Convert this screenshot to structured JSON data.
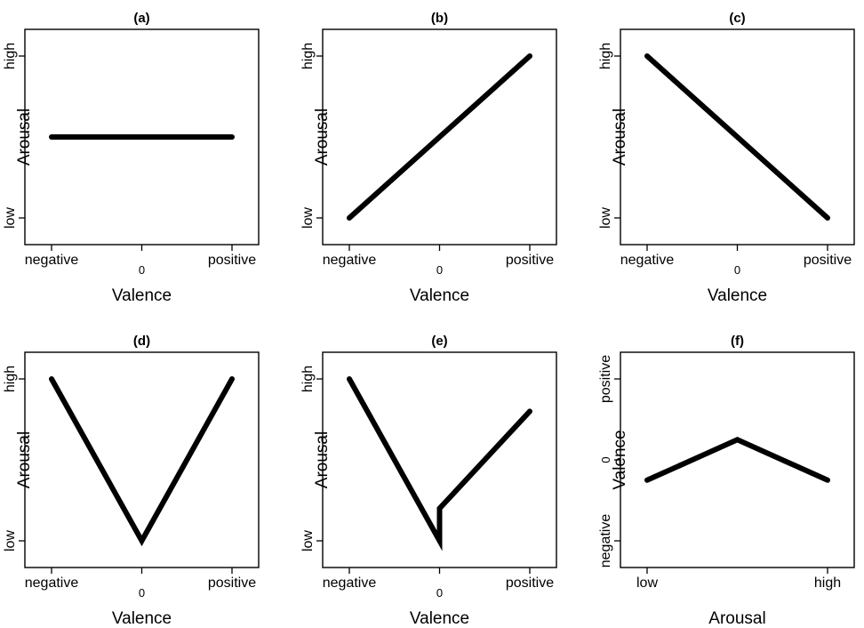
{
  "chart_data": [
    {
      "type": "line",
      "title": "(a)",
      "xlabel": "Valence",
      "ylabel": "Arousal",
      "x_ticks": [
        "negative",
        "0",
        "positive"
      ],
      "y_ticks": [
        "low",
        "high"
      ],
      "xlim": [
        -1,
        1
      ],
      "ylim": [
        0,
        1
      ],
      "series": [
        {
          "x": [
            -1,
            1
          ],
          "y": [
            0.5,
            0.5
          ]
        }
      ]
    },
    {
      "type": "line",
      "title": "(b)",
      "xlabel": "Valence",
      "ylabel": "Arousal",
      "x_ticks": [
        "negative",
        "0",
        "positive"
      ],
      "y_ticks": [
        "low",
        "high"
      ],
      "xlim": [
        -1,
        1
      ],
      "ylim": [
        0,
        1
      ],
      "series": [
        {
          "x": [
            -1,
            1
          ],
          "y": [
            0.0,
            1.0
          ]
        }
      ]
    },
    {
      "type": "line",
      "title": "(c)",
      "xlabel": "Valence",
      "ylabel": "Arousal",
      "x_ticks": [
        "negative",
        "0",
        "positive"
      ],
      "y_ticks": [
        "low",
        "high"
      ],
      "xlim": [
        -1,
        1
      ],
      "ylim": [
        0,
        1
      ],
      "series": [
        {
          "x": [
            -1,
            1
          ],
          "y": [
            1.0,
            0.0
          ]
        }
      ]
    },
    {
      "type": "line",
      "title": "(d)",
      "xlabel": "Valence",
      "ylabel": "Arousal",
      "x_ticks": [
        "negative",
        "0",
        "positive"
      ],
      "y_ticks": [
        "low",
        "high"
      ],
      "xlim": [
        -1,
        1
      ],
      "ylim": [
        0,
        1
      ],
      "series": [
        {
          "x": [
            -1,
            0,
            1
          ],
          "y": [
            1.0,
            0.0,
            1.0
          ]
        }
      ]
    },
    {
      "type": "line",
      "title": "(e)",
      "xlabel": "Valence",
      "ylabel": "Arousal",
      "x_ticks": [
        "negative",
        "0",
        "positive"
      ],
      "y_ticks": [
        "low",
        "high"
      ],
      "xlim": [
        -1,
        1
      ],
      "ylim": [
        0,
        1
      ],
      "series": [
        {
          "x": [
            -1,
            0,
            0,
            1
          ],
          "y": [
            1.0,
            0.0,
            0.2,
            0.8
          ]
        }
      ]
    },
    {
      "type": "line",
      "title": "(f)",
      "xlabel": "Arousal",
      "ylabel": "Valence",
      "x_ticks": [
        "low",
        "high"
      ],
      "y_ticks": [
        "negative",
        "0",
        "positive"
      ],
      "xlim": [
        0,
        1
      ],
      "ylim": [
        -1,
        1
      ],
      "series": [
        {
          "x": [
            0,
            0.5,
            1
          ],
          "y": [
            -0.25,
            0.25,
            -0.25
          ]
        }
      ]
    }
  ]
}
